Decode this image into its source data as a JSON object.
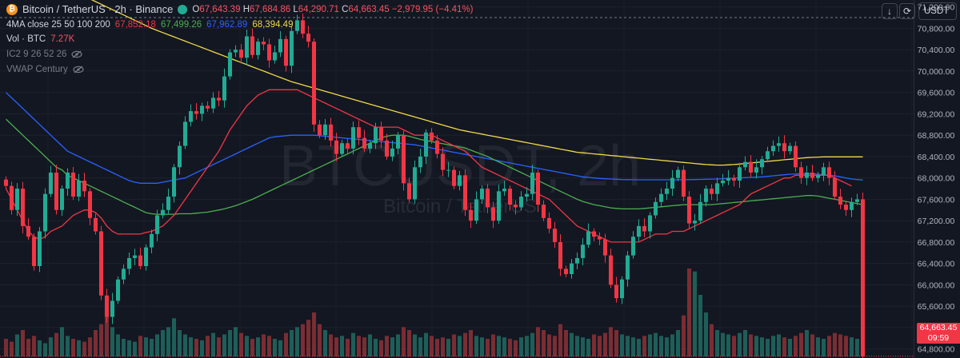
{
  "header": {
    "symbol_title": "Bitcoin / TetherUS · 2h · Binance",
    "ohlc": {
      "open_label": "O",
      "open": "67,643.39",
      "high_label": "H",
      "high": "67,684.86",
      "low_label": "L",
      "low": "64,290.71",
      "close_label": "C",
      "close": "64,663.45",
      "change": "−2,979.95 (−4.41%)"
    }
  },
  "indicators": {
    "ma": {
      "label": "4MA close 25 50 100 200",
      "values": [
        "67,852.18",
        "67,499.26",
        "67,962.89",
        "68,394.49"
      ],
      "colors": [
        "#f23645",
        "#4caf50",
        "#2962ff",
        "#f0d94a"
      ]
    },
    "vol": {
      "label": "Vol · BTC",
      "value": "7.27K"
    },
    "ic2": {
      "label": "IC2 9 26 52 26"
    },
    "vwap": {
      "label": "VWAP Century"
    }
  },
  "toolbar": {
    "currency": "USDT",
    "down_icon": "arrow-down-icon",
    "refresh_icon": "refresh-icon"
  },
  "watermark": {
    "ticker": "BTCUSDT, 2h",
    "name": "Bitcoin / TetherUS"
  },
  "price_tag": {
    "price": "64,663.45",
    "countdown": "09:59",
    "color": "#f23645"
  },
  "chart_data": {
    "type": "candlestick",
    "ylim": [
      64660,
      71300
    ],
    "y_ticks": [
      "71,200.00",
      "70,800.00",
      "70,400.00",
      "70,000.00",
      "69,600.00",
      "69,200.00",
      "68,800.00",
      "68,400.00",
      "68,000.00",
      "67,600.00",
      "67,200.00",
      "66,800.00",
      "66,400.00",
      "66,000.00",
      "65,600.00",
      "65,200.00",
      "64,800.00"
    ],
    "reference_line": 71000,
    "current_price": 64663.45,
    "colors": {
      "up": "#22ab94",
      "down": "#f23645",
      "vol_up": "#1e5e58",
      "vol_down": "#7a2d33"
    },
    "closes": [
      67850,
      67400,
      67800,
      67100,
      66900,
      66350,
      67000,
      67700,
      68100,
      67400,
      67800,
      68100,
      67650,
      67950,
      67750,
      67250,
      67000,
      65800,
      65400,
      65700,
      66100,
      66300,
      66500,
      66550,
      66350,
      66700,
      66950,
      67300,
      67400,
      67650,
      68200,
      68600,
      69050,
      69250,
      69200,
      69350,
      69300,
      69500,
      69450,
      69900,
      70350,
      70400,
      70250,
      70650,
      70300,
      70550,
      70500,
      70200,
      70350,
      70600,
      70100,
      70750,
      70950,
      70700,
      70550,
      69000,
      68800,
      69000,
      68700,
      68450,
      68650,
      68550,
      68950,
      68750,
      68550,
      68650,
      68950,
      68700,
      68400,
      68550,
      68800,
      67900,
      67600,
      68200,
      68400,
      68850,
      68700,
      68450,
      68150,
      68150,
      67850,
      68050,
      67400,
      67200,
      67600,
      67800,
      67450,
      67200,
      67750,
      67800,
      67500,
      67450,
      67650,
      67700,
      68100,
      67500,
      67250,
      67050,
      66800,
      66300,
      66200,
      66400,
      66500,
      66750,
      67000,
      66900,
      66850,
      66550,
      66000,
      65750,
      66100,
      66550,
      66900,
      67100,
      67000,
      67300,
      67550,
      67700,
      67800,
      68000,
      68150,
      67650,
      67150,
      67200,
      67550,
      67800,
      67700,
      67900,
      67950,
      68000,
      67950,
      68200,
      68300,
      68100,
      68200,
      68350,
      68500,
      68600,
      68650,
      68500,
      68600,
      68200,
      68000,
      68100,
      68000,
      68050,
      68200,
      68000,
      67650,
      67500,
      67400,
      67550,
      67600,
      64663
    ],
    "volumes": [
      12,
      10,
      15,
      18,
      12,
      14,
      11,
      9,
      13,
      16,
      20,
      14,
      12,
      11,
      10,
      13,
      18,
      22,
      30,
      20,
      15,
      12,
      11,
      10,
      14,
      13,
      12,
      15,
      18,
      20,
      26,
      18,
      15,
      13,
      12,
      11,
      14,
      16,
      13,
      15,
      18,
      20,
      16,
      14,
      12,
      13,
      15,
      14,
      12,
      11,
      16,
      18,
      20,
      22,
      25,
      30,
      22,
      18,
      15,
      13,
      14,
      12,
      16,
      14,
      13,
      15,
      12,
      11,
      14,
      13,
      15,
      20,
      18,
      15,
      13,
      16,
      14,
      12,
      13,
      12,
      15,
      14,
      16,
      18,
      14,
      13,
      12,
      15,
      14,
      13,
      12,
      11,
      13,
      14,
      16,
      20,
      18,
      15,
      14,
      22,
      18,
      16,
      14,
      13,
      12,
      15,
      14,
      16,
      20,
      18,
      15,
      14,
      13,
      12,
      14,
      15,
      16,
      14,
      13,
      15,
      18,
      28,
      60,
      58,
      42,
      30,
      22,
      18,
      16,
      15,
      14,
      16,
      18,
      15,
      14,
      13,
      12,
      14,
      15,
      13,
      12,
      14,
      16,
      18,
      15,
      13,
      12,
      14,
      16,
      15,
      14,
      13,
      12,
      60
    ],
    "ma25": [
      67800,
      67600,
      67400,
      67200,
      67000,
      66900,
      66850,
      66900,
      67000,
      67050,
      67100,
      67200,
      67300,
      67350,
      67400,
      67400,
      67350,
      67250,
      67100,
      67000,
      66950,
      66950,
      66950,
      66950,
      66950,
      66980,
      67000,
      67050,
      67100,
      67200,
      67300,
      67450,
      67600,
      67750,
      67900,
      68050,
      68200,
      68350,
      68500,
      68700,
      68900,
      69050,
      69200,
      69350,
      69450,
      69550,
      69600,
      69650,
      69650,
      69650,
      69650,
      69650,
      69650,
      69600,
      69550,
      69500,
      69450,
      69400,
      69350,
      69300,
      69250,
      69200,
      69150,
      69100,
      69050,
      69000,
      68950,
      68950,
      68950,
      68950,
      68950,
      68900,
      68850,
      68800,
      68800,
      68800,
      68800,
      68750,
      68700,
      68650,
      68600,
      68550,
      68500,
      68400,
      68300,
      68200,
      68150,
      68100,
      68050,
      68000,
      67950,
      67900,
      67850,
      67800,
      67750,
      67700,
      67650,
      67600,
      67500,
      67400,
      67300,
      67200,
      67100,
      67050,
      67000,
      66950,
      66900,
      66850,
      66800,
      66800,
      66800,
      66800,
      66800,
      66800,
      66850,
      66900,
      66950,
      66950,
      66950,
      67000,
      67000,
      67000,
      67050,
      67100,
      67150,
      67200,
      67250,
      67300,
      67350,
      67400,
      67450,
      67500,
      67600,
      67700,
      67750,
      67800,
      67850,
      67900,
      67950,
      68000,
      68000,
      68050,
      68050,
      68050,
      68050,
      68050,
      68050,
      68050,
      68000,
      67950,
      67900,
      67850
    ],
    "ma50": [
      69100,
      69000,
      68900,
      68800,
      68700,
      68600,
      68500,
      68400,
      68300,
      68200,
      68150,
      68050,
      68000,
      67950,
      67900,
      67850,
      67800,
      67750,
      67700,
      67650,
      67600,
      67550,
      67500,
      67450,
      67400,
      67350,
      67330,
      67320,
      67320,
      67320,
      67320,
      67330,
      67330,
      67330,
      67340,
      67350,
      67360,
      67380,
      67400,
      67420,
      67450,
      67480,
      67520,
      67560,
      67600,
      67650,
      67700,
      67750,
      67800,
      67850,
      67900,
      67950,
      68000,
      68050,
      68100,
      68150,
      68200,
      68250,
      68300,
      68350,
      68400,
      68450,
      68500,
      68550,
      68600,
      68650,
      68700,
      68750,
      68780,
      68800,
      68800,
      68800,
      68780,
      68750,
      68720,
      68700,
      68680,
      68660,
      68640,
      68620,
      68600,
      68580,
      68560,
      68520,
      68480,
      68440,
      68400,
      68350,
      68300,
      68250,
      68200,
      68150,
      68100,
      68050,
      68000,
      67950,
      67900,
      67850,
      67800,
      67750,
      67700,
      67650,
      67600,
      67560,
      67530,
      67500,
      67480,
      67460,
      67440,
      67430,
      67420,
      67420,
      67420,
      67420,
      67430,
      67440,
      67450,
      67460,
      67470,
      67480,
      67490,
      67500,
      67500,
      67500,
      67500,
      67500,
      67500,
      67510,
      67520,
      67530,
      67540,
      67550,
      67560,
      67570,
      67580,
      67590,
      67600,
      67610,
      67620,
      67630,
      67640,
      67650,
      67660,
      67670,
      67670,
      67660,
      67640,
      67620,
      67600,
      67580,
      67560,
      67540,
      67520,
      67500
    ],
    "ma100": [
      69600,
      69500,
      69400,
      69300,
      69200,
      69100,
      69000,
      68900,
      68800,
      68700,
      68600,
      68500,
      68450,
      68400,
      68350,
      68300,
      68250,
      68200,
      68150,
      68100,
      68050,
      68000,
      67950,
      67920,
      67900,
      67900,
      67900,
      67900,
      67920,
      67940,
      67960,
      67980,
      68000,
      68050,
      68100,
      68150,
      68200,
      68250,
      68300,
      68350,
      68400,
      68450,
      68500,
      68550,
      68600,
      68650,
      68700,
      68750,
      68770,
      68780,
      68790,
      68800,
      68800,
      68800,
      68800,
      68800,
      68790,
      68780,
      68770,
      68760,
      68750,
      68740,
      68730,
      68720,
      68710,
      68700,
      68690,
      68680,
      68670,
      68660,
      68650,
      68640,
      68630,
      68620,
      68600,
      68580,
      68560,
      68540,
      68520,
      68500,
      68480,
      68460,
      68440,
      68420,
      68400,
      68380,
      68360,
      68340,
      68320,
      68300,
      68280,
      68260,
      68240,
      68220,
      68200,
      68180,
      68160,
      68140,
      68120,
      68100,
      68080,
      68060,
      68040,
      68020,
      68010,
      68000,
      67990,
      67985,
      67980,
      67975,
      67970,
      67968,
      67966,
      67965,
      67965,
      67965,
      67965,
      67965,
      67965,
      67965,
      67965,
      67966,
      67968,
      67970,
      67972,
      67975,
      67978,
      67980,
      67985,
      67990,
      67995,
      68000,
      68005,
      68010,
      68015,
      68020,
      68030,
      68040,
      68050,
      68060,
      68070,
      68075,
      68080,
      68080,
      68080,
      68070,
      68060,
      68050,
      68040,
      68020,
      68000,
      67980,
      67970,
      67962
    ],
    "ma200": [
      72100,
      72050,
      72000,
      71950,
      71900,
      71850,
      71800,
      71750,
      71700,
      71650,
      71600,
      71550,
      71500,
      71450,
      71400,
      71350,
      71300,
      71250,
      71200,
      71150,
      71100,
      71050,
      71000,
      70950,
      70900,
      70850,
      70800,
      70760,
      70720,
      70680,
      70640,
      70600,
      70560,
      70520,
      70480,
      70440,
      70400,
      70360,
      70320,
      70280,
      70240,
      70200,
      70160,
      70120,
      70080,
      70040,
      70000,
      69960,
      69920,
      69880,
      69840,
      69800,
      69770,
      69740,
      69710,
      69680,
      69650,
      69620,
      69590,
      69560,
      69530,
      69500,
      69470,
      69440,
      69410,
      69380,
      69350,
      69320,
      69290,
      69260,
      69230,
      69200,
      69170,
      69140,
      69110,
      69080,
      69050,
      69020,
      68990,
      68960,
      68930,
      68900,
      68880,
      68860,
      68840,
      68820,
      68800,
      68780,
      68760,
      68740,
      68720,
      68700,
      68680,
      68660,
      68640,
      68620,
      68600,
      68580,
      68560,
      68540,
      68520,
      68500,
      68480,
      68470,
      68460,
      68450,
      68440,
      68430,
      68420,
      68410,
      68400,
      68390,
      68380,
      68370,
      68360,
      68350,
      68340,
      68330,
      68320,
      68310,
      68300,
      68290,
      68280,
      68270,
      68260,
      68250,
      68245,
      68240,
      68240,
      68245,
      68250,
      68260,
      68270,
      68280,
      68290,
      68300,
      68310,
      68320,
      68330,
      68340,
      68350,
      68360,
      68370,
      68380,
      68385,
      68390,
      68395,
      68395,
      68394,
      68394,
      68394,
      68394,
      68394,
      68394
    ]
  }
}
